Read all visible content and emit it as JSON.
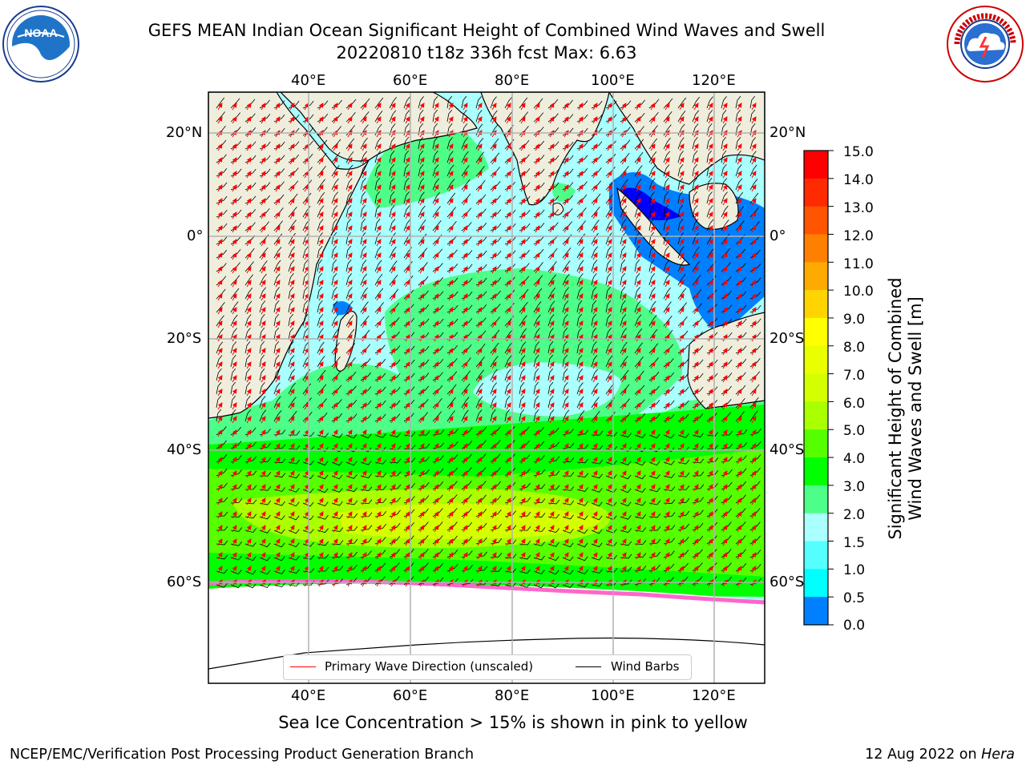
{
  "title": {
    "line1": "GEFS MEAN Indian Ocean Significant Height of Combined Wind Waves and Swell",
    "line2": "20220810 t18z 336h fcst   Max: 6.63"
  },
  "map": {
    "lon_labels": [
      "40°E",
      "60°E",
      "80°E",
      "100°E",
      "120°E"
    ],
    "lat_labels": [
      "20°N",
      "0°",
      "20°S",
      "40°S",
      "60°S"
    ],
    "colors": {
      "land": "#efeedd",
      "ice": "#ffffff",
      "grid": "#b0b0b0"
    }
  },
  "legend": {
    "wave_label": "Primary Wave Direction (unscaled)",
    "wind_label": "Wind Barbs",
    "wave_color": "#ff0000",
    "wind_color": "#000000"
  },
  "colorbar": {
    "title_line1": "Significant Height of Combined",
    "title_line2": "Wind Waves and Swell [m]",
    "ticks": [
      "15.0",
      "14.0",
      "13.0",
      "12.0",
      "11.0",
      "10.0",
      "9.0",
      "8.0",
      "7.0",
      "6.0",
      "5.0",
      "4.0",
      "3.0",
      "2.0",
      "1.5",
      "1.0",
      "0.5",
      "0.0"
    ],
    "colors": [
      "#ff0000",
      "#ff2a00",
      "#ff5500",
      "#ff7f00",
      "#ffaa00",
      "#ffd400",
      "#ffff00",
      "#eaff00",
      "#d4ff00",
      "#aaff00",
      "#55ff00",
      "#00ff00",
      "#4dff88",
      "#aaffff",
      "#55ffff",
      "#00ffff",
      "#0080ff",
      "#0000ff"
    ]
  },
  "caption": "Sea Ice Concentration > 15% is shown in pink to yellow",
  "footer": {
    "left": "NCEP/EMC/Verification Post Processing Product Generation Branch",
    "date": "12 Aug 2022 on ",
    "machine": "Hera"
  },
  "logos": {
    "noaa": "NOAA",
    "nws": "NATIONAL WEATHER SERVICE"
  }
}
